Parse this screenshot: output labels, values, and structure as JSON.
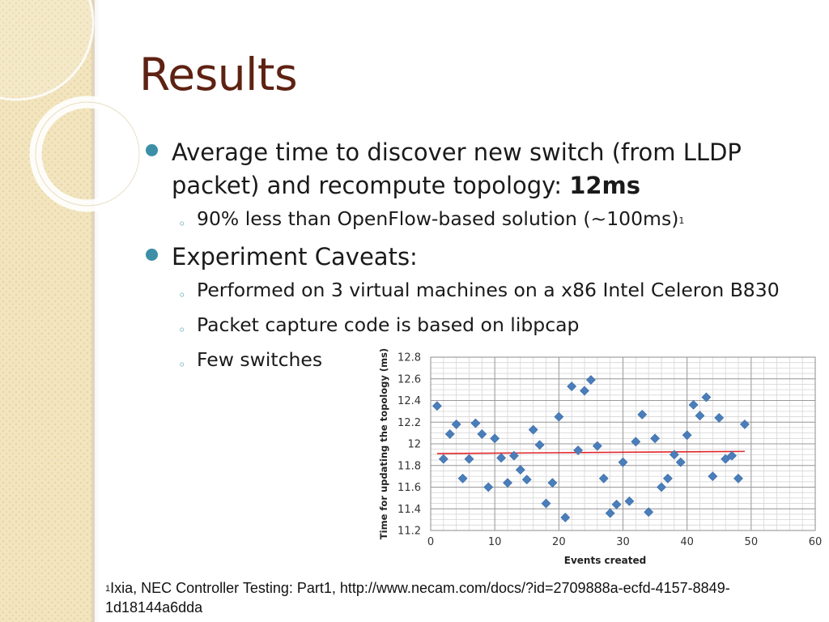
{
  "slide": {
    "title": "Results",
    "bullet1": {
      "text": "Average time to discover new switch (from LLDP packet) and recompute topology: ",
      "emphasis": "12ms",
      "sub": {
        "text": "90% less than OpenFlow-based solution (~100ms)",
        "sup": "1"
      }
    },
    "bullet2": {
      "text": "Experiment Caveats:",
      "subs": [
        "Performed on 3 virtual machines on a x86 Intel Celeron B830",
        "Packet capture code is based on libpcap",
        "Few switches"
      ]
    },
    "footnote": {
      "sup": "1",
      "text": "Ixia, NEC Controller Testing: Part1, http://www.necam.com/docs/?id=2709888a-ecfd-4157-8849-1d18144a6dda"
    },
    "colors": {
      "title": "#5e2212",
      "bullet": "#3c8fa6",
      "marker": "#4a7ebb",
      "trendline": "#e0262b"
    }
  },
  "chart_data": {
    "type": "scatter",
    "title": "",
    "xlabel": "Events created",
    "ylabel": "Time  for  updating  the  topology  (ms)",
    "xlim": [
      0,
      60
    ],
    "ylim": [
      11.2,
      12.8
    ],
    "xticks": [
      "0",
      "10",
      "20",
      "30",
      "40",
      "50",
      "60"
    ],
    "yticks": [
      "11.2",
      "11.4",
      "11.6",
      "11.8",
      "12",
      "12.2",
      "12.4",
      "12.6",
      "12.8"
    ],
    "grid": true,
    "legend": "none",
    "series": [
      {
        "points": [
          [
            1,
            12.35
          ],
          [
            2,
            11.86
          ],
          [
            3,
            12.09
          ],
          [
            4,
            12.18
          ],
          [
            5,
            11.68
          ],
          [
            6,
            11.86
          ],
          [
            7,
            12.19
          ],
          [
            8,
            12.09
          ],
          [
            9,
            11.6
          ],
          [
            10,
            12.05
          ],
          [
            11,
            11.87
          ],
          [
            12,
            11.64
          ],
          [
            13,
            11.89
          ],
          [
            14,
            11.76
          ],
          [
            15,
            11.67
          ],
          [
            16,
            12.13
          ],
          [
            17,
            11.99
          ],
          [
            18,
            11.45
          ],
          [
            19,
            11.64
          ],
          [
            20,
            12.25
          ],
          [
            21,
            11.32
          ],
          [
            22,
            12.53
          ],
          [
            23,
            11.94
          ],
          [
            24,
            12.49
          ],
          [
            25,
            12.59
          ],
          [
            26,
            11.98
          ],
          [
            27,
            11.68
          ],
          [
            28,
            11.36
          ],
          [
            29,
            11.44
          ],
          [
            30,
            11.83
          ],
          [
            31,
            11.47
          ],
          [
            32,
            12.02
          ],
          [
            33,
            12.27
          ],
          [
            34,
            11.37
          ],
          [
            35,
            12.05
          ],
          [
            36,
            11.6
          ],
          [
            37,
            11.68
          ],
          [
            38,
            11.9
          ],
          [
            39,
            11.83
          ],
          [
            40,
            12.08
          ],
          [
            41,
            12.36
          ],
          [
            42,
            12.26
          ],
          [
            43,
            12.43
          ],
          [
            44,
            11.7
          ],
          [
            45,
            12.24
          ],
          [
            46,
            11.86
          ],
          [
            47,
            11.89
          ],
          [
            48,
            11.68
          ],
          [
            49,
            12.18
          ]
        ]
      }
    ],
    "trendline": {
      "x": [
        1,
        49
      ],
      "y": [
        11.91,
        11.93
      ]
    }
  }
}
